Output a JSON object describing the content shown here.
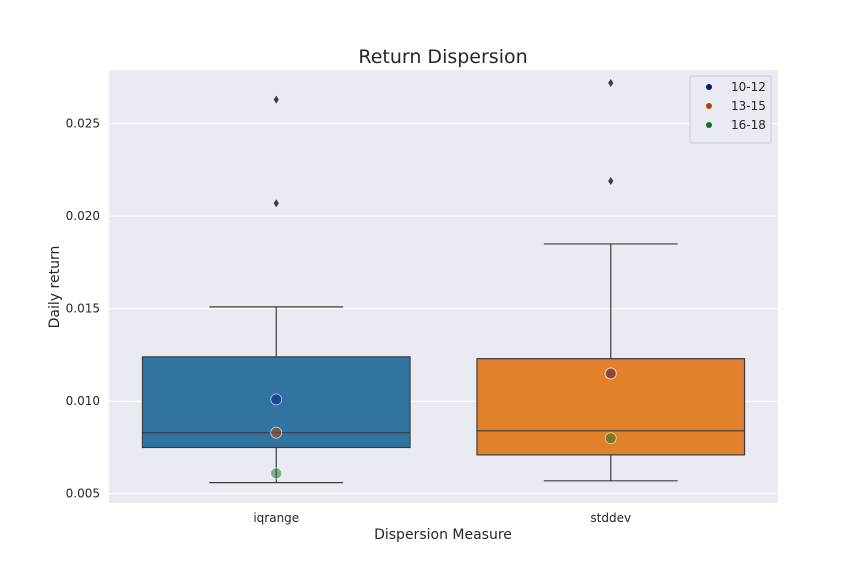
{
  "chart_data": {
    "type": "box",
    "title": "Return Dispersion",
    "xlabel": "Dispersion Measure",
    "ylabel": "Daily return",
    "categories": [
      "iqrange",
      "stddev"
    ],
    "ylim": [
      0.0045,
      0.0279
    ],
    "yticks": [
      "0.005",
      "0.010",
      "0.015",
      "0.020",
      "0.025"
    ],
    "grid": true,
    "boxes": [
      {
        "category": "iqrange",
        "color": "#3274a1",
        "whisker_low": 0.0056,
        "q1": 0.0075,
        "median": 0.0083,
        "q3": 0.0124,
        "whisker_high": 0.0151,
        "fliers": [
          0.0207,
          0.0263
        ]
      },
      {
        "category": "stddev",
        "color": "#e1812c",
        "whisker_low": 0.0057,
        "q1": 0.0071,
        "median": 0.0084,
        "q3": 0.0123,
        "whisker_high": 0.0185,
        "fliers": [
          0.0219,
          0.0272
        ]
      }
    ],
    "legend": {
      "placement": "top-right",
      "entries": [
        {
          "label": "10-12",
          "color": "#001c7f"
        },
        {
          "label": "13-15",
          "color": "#b1400d"
        },
        {
          "label": "16-18",
          "color": "#12711c"
        }
      ]
    },
    "overlay_points": [
      {
        "category": "iqrange",
        "group": "10-12",
        "value": 0.0101
      },
      {
        "category": "iqrange",
        "group": "13-15",
        "value": 0.0083
      },
      {
        "category": "iqrange",
        "group": "16-18",
        "value": 0.0061
      },
      {
        "category": "stddev",
        "group": "10-12",
        "value": 0.0115
      },
      {
        "category": "stddev",
        "group": "13-15",
        "value": 0.0115
      },
      {
        "category": "stddev",
        "group": "16-18",
        "value": 0.008
      }
    ]
  }
}
